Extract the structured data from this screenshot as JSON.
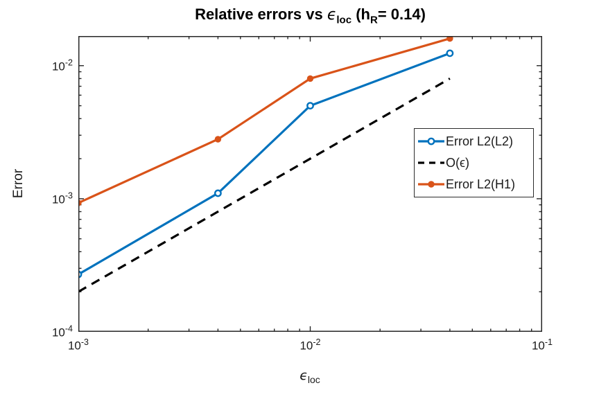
{
  "chart_data": {
    "type": "line",
    "title": "Relative errors vs ϵ_loc (h_R= 0.14)",
    "title_parts": {
      "pre": "Relative errors vs ",
      "epsilon": "ϵ",
      "eps_sub": "loc",
      "mid": " (h",
      "h_sub": "R",
      "post": "= 0.14)"
    },
    "xlabel": "ϵ_loc",
    "xlabel_parts": {
      "epsilon": "ϵ",
      "sub": "loc"
    },
    "ylabel": "Error",
    "x_scale": "log",
    "y_scale": "log",
    "xlim": [
      0.001,
      0.1
    ],
    "ylim": [
      0.0001,
      0.0167
    ],
    "grid": false,
    "legend_position": "middle-right",
    "axis_color": "#262626",
    "x": [
      0.001,
      0.004,
      0.01,
      0.04
    ],
    "series": [
      {
        "name": "Error L2(L2)",
        "color": "#0072BD",
        "line": "solid",
        "marker": "open-circle",
        "values": [
          0.00027,
          0.0011,
          0.005,
          0.0124
        ]
      },
      {
        "name": "O(ϵ)",
        "color": "#000000",
        "line": "dashed",
        "marker": "none",
        "values": [
          0.0002,
          0.0008,
          0.002,
          0.008
        ]
      },
      {
        "name": "Error L2(H1)",
        "color": "#D95319",
        "line": "solid",
        "marker": "filled-circle",
        "values": [
          0.00093,
          0.0028,
          0.008,
          0.016
        ]
      }
    ],
    "x_ticks": [
      {
        "base": "10",
        "exp": "-3",
        "value": 0.001
      },
      {
        "base": "10",
        "exp": "-2",
        "value": 0.01
      },
      {
        "base": "10",
        "exp": "-1",
        "value": 0.1
      }
    ],
    "y_ticks": [
      {
        "base": "10",
        "exp": "-2",
        "value": 0.01
      },
      {
        "base": "10",
        "exp": "-3",
        "value": 0.001
      },
      {
        "base": "10",
        "exp": "-4",
        "value": 0.0001
      }
    ]
  }
}
